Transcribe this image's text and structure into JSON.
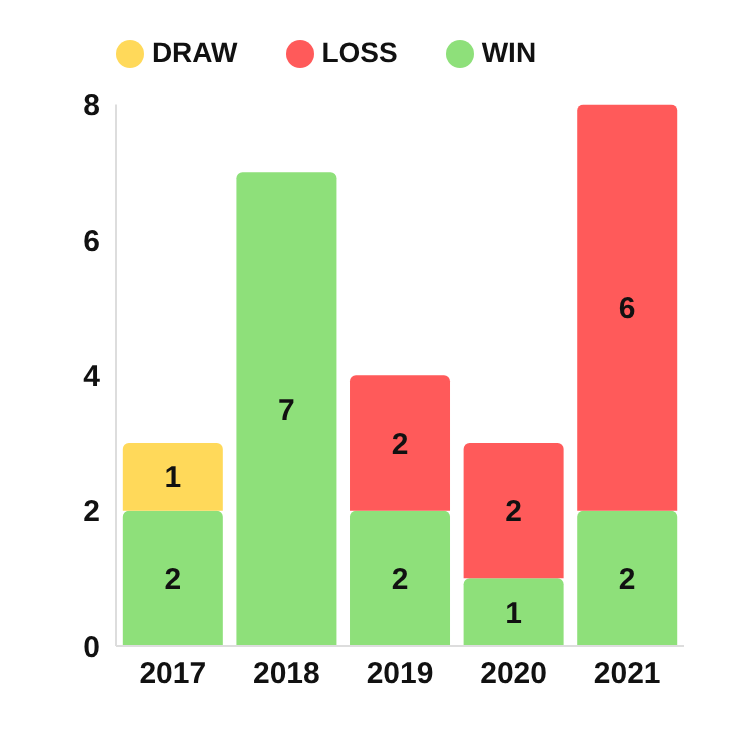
{
  "chart_data": {
    "type": "bar",
    "stacked": true,
    "categories": [
      "2017",
      "2018",
      "2019",
      "2020",
      "2021"
    ],
    "series": [
      {
        "name": "WIN",
        "color": "#8ee07a",
        "values": [
          2,
          7,
          2,
          1,
          2
        ]
      },
      {
        "name": "DRAW",
        "color": "#ffd95a",
        "values": [
          1,
          null,
          null,
          null,
          null
        ]
      },
      {
        "name": "LOSS",
        "color": "#ff5a5a",
        "values": [
          null,
          null,
          2,
          2,
          6
        ]
      }
    ],
    "ylim": [
      0,
      8
    ],
    "yticks": [
      0,
      2,
      4,
      6,
      8
    ],
    "grid": false,
    "legend": "top",
    "data_labels": true
  }
}
